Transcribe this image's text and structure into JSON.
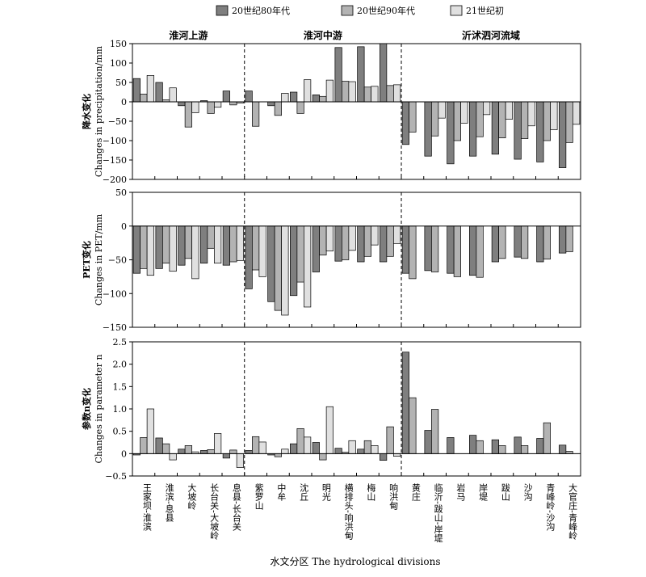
{
  "legend": {
    "items": [
      {
        "label": "20世纪80年代",
        "color": "#7f7f7f"
      },
      {
        "label": "20世纪90年代",
        "color": "#b3b3b3"
      },
      {
        "label": "21世纪初",
        "color": "#e0e0e0"
      }
    ]
  },
  "xlabel": "水文分区 The hydrological divisions",
  "regions": [
    "淮河上游",
    "淮河中游",
    "沂沭泗河流域"
  ],
  "categories": [
    "王家坝-淮滨",
    "淮滨-息县",
    "大坡岭",
    "长台关-大坡岭",
    "息县-长台关",
    "紫罗山",
    "中牟",
    "沈丘",
    "明光",
    "横排头-响洪甸",
    "梅山",
    "响洪甸",
    "黄庄",
    "临沂-跋山-岸堤",
    "岩马",
    "岸堤",
    "跋山",
    "沙沟",
    "青峰岭-沙沟",
    "大官庄-青峰岭"
  ],
  "chart_data": [
    {
      "type": "bar",
      "panel": "precipitation",
      "ylabel_cn": "降水变化",
      "ylabel_en": "Changes in precipitation/mm",
      "ylim": [
        -200,
        150
      ],
      "ticks": [
        -200,
        -150,
        -100,
        -50,
        0,
        50,
        100,
        150
      ],
      "tick_labels": [
        "−200",
        "−150",
        "−100",
        "−50",
        "0",
        "50",
        "100",
        "150"
      ],
      "series": [
        {
          "name": "20世纪80年代",
          "values": [
            60,
            50,
            -10,
            3,
            28,
            28,
            -10,
            25,
            18,
            140,
            142,
            150,
            -110,
            -140,
            -160,
            -140,
            -135,
            -148,
            -155,
            -170
          ]
        },
        {
          "name": "20世纪90年代",
          "values": [
            20,
            5,
            -65,
            -30,
            -8,
            -63,
            -35,
            -30,
            14,
            53,
            38,
            42,
            -78,
            -88,
            -100,
            -90,
            -93,
            -95,
            -100,
            -105
          ]
        },
        {
          "name": "21世纪初",
          "values": [
            68,
            36,
            -28,
            -14,
            -3,
            0,
            22,
            57,
            56,
            52,
            40,
            44,
            0,
            -42,
            -55,
            -33,
            -45,
            -62,
            -72,
            -58
          ]
        }
      ]
    },
    {
      "type": "bar",
      "panel": "pet",
      "ylabel_cn": "PET变化",
      "ylabel_en": "Changes in PET/mm",
      "ylim": [
        -150,
        50
      ],
      "ticks": [
        -150,
        -100,
        -50,
        0,
        50
      ],
      "tick_labels": [
        "−150",
        "−100",
        "−50",
        "0",
        "50"
      ],
      "series": [
        {
          "name": "20世纪80年代",
          "values": [
            -70,
            -63,
            -58,
            -55,
            -58,
            -93,
            -112,
            -103,
            -68,
            -52,
            -53,
            -53,
            -70,
            -66,
            -70,
            -73,
            -53,
            -46,
            -53,
            -40
          ]
        },
        {
          "name": "20世纪90年代",
          "values": [
            -63,
            -55,
            -48,
            -33,
            -53,
            -65,
            -125,
            -83,
            -43,
            -50,
            -45,
            -45,
            -78,
            -68,
            -75,
            -76,
            -48,
            -48,
            -49,
            -38
          ]
        },
        {
          "name": "21世纪初",
          "values": [
            -73,
            -67,
            -78,
            -55,
            -51,
            -75,
            -132,
            -120,
            -37,
            -36,
            -28,
            -26,
            0,
            0,
            0,
            0,
            0,
            0,
            0,
            0
          ]
        }
      ]
    },
    {
      "type": "bar",
      "panel": "parameter-n",
      "ylabel_cn": "参数n变化",
      "ylabel_en": "Changes in parameter n",
      "ylim": [
        -0.5,
        2.5
      ],
      "ticks": [
        -0.5,
        0,
        0.5,
        1.0,
        1.5,
        2.0,
        2.5
      ],
      "tick_labels": [
        "−0.5",
        "0",
        "0.5",
        "1.0",
        "1.5",
        "2.0",
        "2.5"
      ],
      "series": [
        {
          "name": "20世纪80年代",
          "values": [
            -0.03,
            0.35,
            0.1,
            0.07,
            -0.1,
            0.07,
            -0.03,
            0.22,
            0.25,
            0.12,
            0.1,
            -0.15,
            2.27,
            0.52,
            0.36,
            0.41,
            0.31,
            0.37,
            0.34,
            0.19
          ]
        },
        {
          "name": "20世纪90年代",
          "values": [
            0.36,
            0.22,
            0.18,
            0.09,
            0.08,
            0.38,
            -0.07,
            0.56,
            -0.14,
            0.03,
            0.29,
            0.6,
            1.25,
            0.99,
            0.0,
            0.29,
            0.18,
            0.18,
            0.69,
            0.05
          ]
        },
        {
          "name": "21世纪初",
          "values": [
            1.0,
            -0.14,
            0.04,
            0.45,
            -0.31,
            0.26,
            0.1,
            0.37,
            1.05,
            0.29,
            0.18,
            -0.06,
            0,
            0,
            0,
            0,
            0,
            0,
            0,
            0
          ]
        }
      ]
    }
  ]
}
